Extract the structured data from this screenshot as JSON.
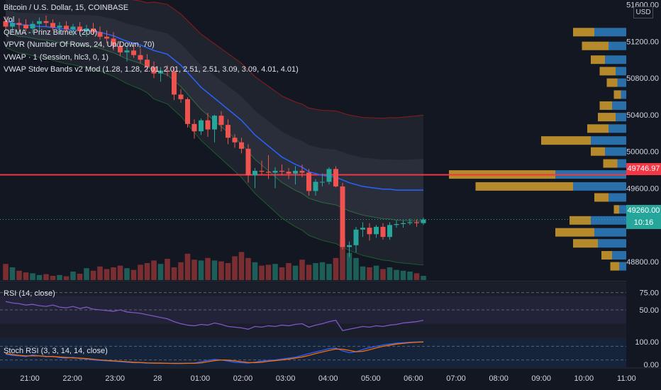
{
  "legend": {
    "symbol": "Bitcoin / U.S. Dollar, 15, COINBASE",
    "vol": "Vol",
    "qema": "QEMA - Prinz Bitmex (200)",
    "vpvr": "VPVR (Number Of Rows, 24, Up/Down, 70)",
    "vwap": "VWAP · 1 (Session, hlc3, 0, 1)",
    "vwap_bands": "VWAP Stdev Bands v2 Mod (1.28, 1.28, 2.01, 2.01, 2.51, 2.51, 3.09, 3.09, 4.01, 4.01)"
  },
  "currency": "USD",
  "price_tags": {
    "red_line": "49746.97",
    "last_price": "49260.00",
    "countdown": "10:16"
  },
  "panes": {
    "rsi_label": "RSI (14, close)",
    "stoch_label": "Stoch RSI (3, 3, 14, 14, close)"
  },
  "colors": {
    "background": "#131722",
    "up": "#26a69a",
    "down": "#ef5350",
    "vwap": "#2962ff",
    "red_line": "#f23645",
    "vpvr_up": "#2e7fc1",
    "vpvr_down": "#e0a82e"
  },
  "chart_data": {
    "type": "candlestick",
    "title": "Bitcoin / U.S. Dollar, 15, COINBASE",
    "price_axis": {
      "ticks": [
        "51600.00",
        "51200.00",
        "50800.00",
        "50400.00",
        "50000.00",
        "49600.00",
        "48800.00"
      ],
      "ylim": [
        48600,
        51650
      ]
    },
    "time_axis": {
      "ticks": [
        "21:00",
        "22:00",
        "23:00",
        "28",
        "01:00",
        "02:00",
        "03:00",
        "04:00",
        "05:00",
        "06:00",
        "07:00",
        "08:00",
        "09:00",
        "10:00",
        "11:00"
      ]
    },
    "candles": [
      {
        "o": 51420,
        "h": 51470,
        "l": 51320,
        "c": 51360
      },
      {
        "o": 51360,
        "h": 51430,
        "l": 51300,
        "c": 51400
      },
      {
        "o": 51400,
        "h": 51450,
        "l": 51330,
        "c": 51380
      },
      {
        "o": 51380,
        "h": 51440,
        "l": 51310,
        "c": 51340
      },
      {
        "o": 51340,
        "h": 51420,
        "l": 51290,
        "c": 51390
      },
      {
        "o": 51390,
        "h": 51460,
        "l": 51320,
        "c": 51420
      },
      {
        "o": 51420,
        "h": 51480,
        "l": 51360,
        "c": 51400
      },
      {
        "o": 51400,
        "h": 51440,
        "l": 51320,
        "c": 51350
      },
      {
        "o": 51350,
        "h": 51410,
        "l": 51280,
        "c": 51370
      },
      {
        "o": 51370,
        "h": 51420,
        "l": 51300,
        "c": 51330
      },
      {
        "o": 51330,
        "h": 51390,
        "l": 51260,
        "c": 51360
      },
      {
        "o": 51360,
        "h": 51410,
        "l": 51290,
        "c": 51310
      },
      {
        "o": 51310,
        "h": 51380,
        "l": 51250,
        "c": 51340
      },
      {
        "o": 51340,
        "h": 51400,
        "l": 51270,
        "c": 51300
      },
      {
        "o": 51300,
        "h": 51360,
        "l": 51220,
        "c": 51250
      },
      {
        "o": 51250,
        "h": 51320,
        "l": 51180,
        "c": 51230
      },
      {
        "o": 51230,
        "h": 51300,
        "l": 51100,
        "c": 51150
      },
      {
        "o": 51150,
        "h": 51200,
        "l": 51040,
        "c": 51080
      },
      {
        "o": 51080,
        "h": 51150,
        "l": 50980,
        "c": 51100
      },
      {
        "o": 51100,
        "h": 51160,
        "l": 51020,
        "c": 51050
      },
      {
        "o": 51050,
        "h": 51120,
        "l": 50960,
        "c": 51000
      },
      {
        "o": 51000,
        "h": 51060,
        "l": 50880,
        "c": 50920
      },
      {
        "o": 50920,
        "h": 50980,
        "l": 50800,
        "c": 50850
      },
      {
        "o": 50850,
        "h": 50920,
        "l": 50760,
        "c": 50880
      },
      {
        "o": 50880,
        "h": 50940,
        "l": 50820,
        "c": 50870
      },
      {
        "o": 50870,
        "h": 50920,
        "l": 50560,
        "c": 50620
      },
      {
        "o": 50620,
        "h": 50680,
        "l": 50530,
        "c": 50570
      },
      {
        "o": 50570,
        "h": 50590,
        "l": 50260,
        "c": 50300
      },
      {
        "o": 50300,
        "h": 50350,
        "l": 50140,
        "c": 50220
      },
      {
        "o": 50220,
        "h": 50360,
        "l": 50180,
        "c": 50340
      },
      {
        "o": 50340,
        "h": 50420,
        "l": 50160,
        "c": 50240
      },
      {
        "o": 50240,
        "h": 50400,
        "l": 50100,
        "c": 50390
      },
      {
        "o": 50390,
        "h": 50440,
        "l": 50220,
        "c": 50290
      },
      {
        "o": 50290,
        "h": 50350,
        "l": 50080,
        "c": 50150
      },
      {
        "o": 50150,
        "h": 50190,
        "l": 50040,
        "c": 50100
      },
      {
        "o": 50100,
        "h": 50150,
        "l": 49980,
        "c": 50030
      },
      {
        "o": 50030,
        "h": 50080,
        "l": 49660,
        "c": 49740
      },
      {
        "o": 49740,
        "h": 49820,
        "l": 49600,
        "c": 49790
      },
      {
        "o": 49790,
        "h": 49900,
        "l": 49750,
        "c": 49780
      },
      {
        "o": 49780,
        "h": 49960,
        "l": 49700,
        "c": 49770
      },
      {
        "o": 49770,
        "h": 49830,
        "l": 49600,
        "c": 49790
      },
      {
        "o": 49790,
        "h": 49860,
        "l": 49740,
        "c": 49780
      },
      {
        "o": 49780,
        "h": 49820,
        "l": 49700,
        "c": 49760
      },
      {
        "o": 49760,
        "h": 49840,
        "l": 49640,
        "c": 49790
      },
      {
        "o": 49790,
        "h": 49860,
        "l": 49720,
        "c": 49770
      },
      {
        "o": 49770,
        "h": 49810,
        "l": 49520,
        "c": 49570
      },
      {
        "o": 49570,
        "h": 49700,
        "l": 49520,
        "c": 49670
      },
      {
        "o": 49670,
        "h": 49760,
        "l": 49620,
        "c": 49670
      },
      {
        "o": 49670,
        "h": 49830,
        "l": 49640,
        "c": 49810
      },
      {
        "o": 49810,
        "h": 49840,
        "l": 49610,
        "c": 49620
      },
      {
        "o": 49620,
        "h": 49660,
        "l": 48930,
        "c": 48960
      },
      {
        "o": 48960,
        "h": 49020,
        "l": 48850,
        "c": 48980
      },
      {
        "o": 48980,
        "h": 49180,
        "l": 48900,
        "c": 49150
      },
      {
        "o": 49150,
        "h": 49230,
        "l": 49070,
        "c": 49170
      },
      {
        "o": 49170,
        "h": 49220,
        "l": 49030,
        "c": 49100
      },
      {
        "o": 49100,
        "h": 49200,
        "l": 49060,
        "c": 49180
      },
      {
        "o": 49180,
        "h": 49220,
        "l": 49040,
        "c": 49070
      },
      {
        "o": 49070,
        "h": 49230,
        "l": 49040,
        "c": 49200
      },
      {
        "o": 49200,
        "h": 49250,
        "l": 49170,
        "c": 49210
      },
      {
        "o": 49210,
        "h": 49250,
        "l": 49170,
        "c": 49220
      },
      {
        "o": 49220,
        "h": 49270,
        "l": 49200,
        "c": 49230
      },
      {
        "o": 49230,
        "h": 49260,
        "l": 49180,
        "c": 49220
      },
      {
        "o": 49220,
        "h": 49280,
        "l": 49200,
        "c": 49260
      }
    ],
    "volume": [
      0.38,
      0.3,
      0.22,
      0.18,
      0.16,
      0.12,
      0.14,
      0.1,
      0.12,
      0.09,
      0.2,
      0.15,
      0.28,
      0.22,
      0.32,
      0.26,
      0.3,
      0.34,
      0.28,
      0.24,
      0.36,
      0.4,
      0.46,
      0.38,
      0.5,
      0.3,
      0.42,
      0.62,
      0.48,
      0.46,
      0.52,
      0.46,
      0.44,
      0.4,
      0.56,
      0.66,
      0.52,
      0.42,
      0.34,
      0.36,
      0.38,
      0.3,
      0.4,
      0.34,
      0.48,
      0.36,
      0.4,
      0.42,
      0.38,
      0.52,
      0.96,
      0.64,
      0.52,
      0.32,
      0.3,
      0.34,
      0.26,
      0.3,
      0.24,
      0.22,
      0.2,
      0.16,
      0.1
    ],
    "vwap": [
      51420,
      51400,
      51380,
      51380,
      51370,
      51360,
      51360,
      51350,
      51340,
      51330,
      51330,
      51320,
      51320,
      51310,
      51300,
      51280,
      51260,
      51230,
      51200,
      51180,
      51160,
      51130,
      51100,
      51080,
      51060,
      51000,
      50940,
      50860,
      50780,
      50700,
      50640,
      50580,
      50520,
      50460,
      50400,
      50340,
      50260,
      50180,
      50120,
      50060,
      50000,
      49940,
      49900,
      49860,
      49830,
      49780,
      49760,
      49740,
      49730,
      49720,
      49690,
      49660,
      49640,
      49620,
      49610,
      49600,
      49590,
      49590,
      49580,
      49580,
      49580,
      49580,
      49580
    ],
    "red_line_price": 49746.97,
    "last_price": 49260.0,
    "rsi": {
      "label": "RSI (14, close)",
      "ticks": [
        "75.00",
        "50.00"
      ],
      "ylim": [
        10,
        90
      ],
      "values": [
        62,
        60,
        59,
        57,
        58,
        56,
        55,
        57,
        54,
        53,
        55,
        52,
        54,
        51,
        50,
        49,
        48,
        50,
        47,
        46,
        45,
        43,
        41,
        39,
        37,
        33,
        30,
        28,
        27,
        29,
        28,
        31,
        29,
        26,
        25,
        24,
        22,
        26,
        25,
        27,
        26,
        28,
        27,
        29,
        30,
        25,
        28,
        30,
        33,
        35,
        20,
        22,
        24,
        26,
        25,
        27,
        26,
        28,
        29,
        31,
        32,
        33,
        35
      ]
    },
    "stoch_rsi": {
      "label": "Stoch RSI (3, 3, 14, 14, close)",
      "ticks": [
        "100.00",
        "0.00"
      ],
      "ylim": [
        0,
        100
      ],
      "k": [
        45,
        40,
        38,
        35,
        42,
        38,
        34,
        36,
        30,
        28,
        32,
        26,
        24,
        20,
        18,
        16,
        14,
        12,
        10,
        8,
        8,
        6,
        6,
        5,
        5,
        4,
        4,
        5,
        6,
        12,
        18,
        22,
        20,
        15,
        10,
        8,
        6,
        10,
        15,
        18,
        20,
        24,
        28,
        32,
        40,
        48,
        55,
        62,
        70,
        72,
        60,
        52,
        56,
        66,
        74,
        80,
        86,
        90,
        94,
        96,
        98,
        99,
        100
      ],
      "d": [
        48,
        44,
        40,
        38,
        38,
        38,
        36,
        35,
        33,
        31,
        29,
        28,
        26,
        23,
        20,
        18,
        16,
        14,
        12,
        10,
        9,
        7,
        6,
        6,
        5,
        5,
        5,
        5,
        5,
        7,
        12,
        17,
        20,
        19,
        16,
        12,
        9,
        8,
        10,
        14,
        17,
        20,
        24,
        28,
        33,
        40,
        48,
        55,
        62,
        68,
        67,
        62,
        56,
        58,
        65,
        73,
        80,
        85,
        90,
        93,
        96,
        98,
        99
      ]
    },
    "vpvr": [
      {
        "price": 51300,
        "up": 0.18,
        "down": 0.12
      },
      {
        "price": 51150,
        "up": 0.1,
        "down": 0.15
      },
      {
        "price": 51000,
        "up": 0.12,
        "down": 0.08
      },
      {
        "price": 50875,
        "up": 0.06,
        "down": 0.09
      },
      {
        "price": 50750,
        "up": 0.05,
        "down": 0.06
      },
      {
        "price": 50620,
        "up": 0.03,
        "down": 0.04
      },
      {
        "price": 50500,
        "up": 0.08,
        "down": 0.07
      },
      {
        "price": 50375,
        "up": 0.06,
        "down": 0.1
      },
      {
        "price": 50250,
        "up": 0.1,
        "down": 0.12
      },
      {
        "price": 50120,
        "up": 0.2,
        "down": 0.28
      },
      {
        "price": 50000,
        "up": 0.12,
        "down": 0.08
      },
      {
        "price": 49870,
        "up": 0.05,
        "down": 0.08
      },
      {
        "price": 49750,
        "up": 0.4,
        "down": 0.6
      },
      {
        "price": 49620,
        "up": 0.3,
        "down": 0.55
      },
      {
        "price": 49500,
        "up": 0.1,
        "down": 0.08
      },
      {
        "price": 49370,
        "up": 0.04,
        "down": 0.03
      },
      {
        "price": 49250,
        "up": 0.2,
        "down": 0.12
      },
      {
        "price": 49120,
        "up": 0.18,
        "down": 0.22
      },
      {
        "price": 49000,
        "up": 0.16,
        "down": 0.14
      },
      {
        "price": 48870,
        "up": 0.08,
        "down": 0.06
      },
      {
        "price": 48750,
        "up": 0.04,
        "down": 0.05
      }
    ]
  }
}
